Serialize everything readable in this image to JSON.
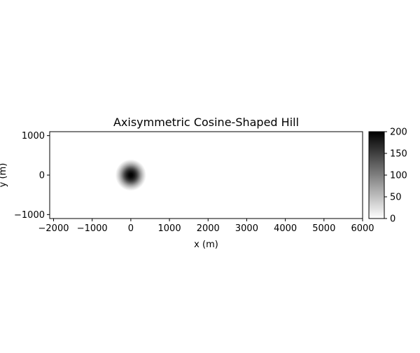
{
  "chart_data": {
    "type": "heatmap",
    "title": "Axisymmetric Cosine-Shaped Hill",
    "xlabel": "x (m)",
    "ylabel": "y (m)",
    "xlim": [
      -2100,
      6000
    ],
    "ylim": [
      -1100,
      1100
    ],
    "x_ticks": [
      -2000,
      -1000,
      0,
      1000,
      2000,
      3000,
      4000,
      5000,
      6000
    ],
    "y_ticks": [
      -1000,
      0,
      1000
    ],
    "colormap": "gray_r",
    "hill": {
      "center_x": 0,
      "center_y": 0,
      "radius": 400,
      "peak_height": 200
    },
    "colorbar": {
      "min": 0,
      "max": 200,
      "ticks": [
        0,
        50,
        100,
        150,
        200
      ]
    },
    "grid": false
  }
}
